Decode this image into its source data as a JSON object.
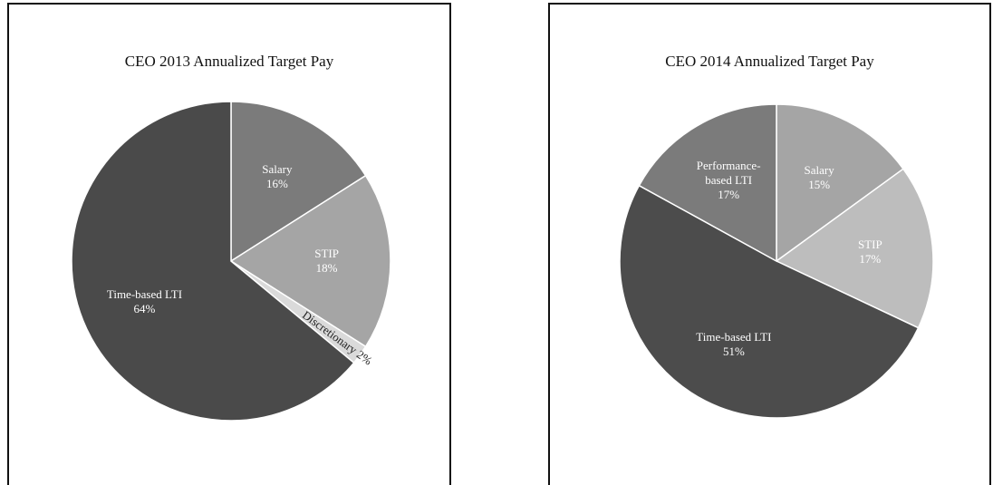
{
  "chart_data": [
    {
      "type": "pie",
      "title": "CEO 2013 Annualized Target Pay",
      "categories": [
        "Salary",
        "STIP",
        "Discretionary",
        "Time-based LTI"
      ],
      "values": [
        16,
        18,
        2,
        64
      ],
      "value_labels": [
        "16%",
        "18%",
        "2%",
        "64%"
      ],
      "colors": [
        "#7b7b7b",
        "#a5a5a5",
        "#dadada",
        "#4a4a4a"
      ]
    },
    {
      "type": "pie",
      "title": "CEO 2014 Annualized Target Pay",
      "categories": [
        "Salary",
        "STIP",
        "Time-based LTI",
        "Performance-based LTI"
      ],
      "values": [
        15,
        17,
        51,
        17
      ],
      "value_labels": [
        "15%",
        "17%",
        "51%",
        "17%"
      ],
      "colors": [
        "#a5a5a5",
        "#bdbdbd",
        "#4c4c4c",
        "#7b7b7b"
      ]
    }
  ]
}
